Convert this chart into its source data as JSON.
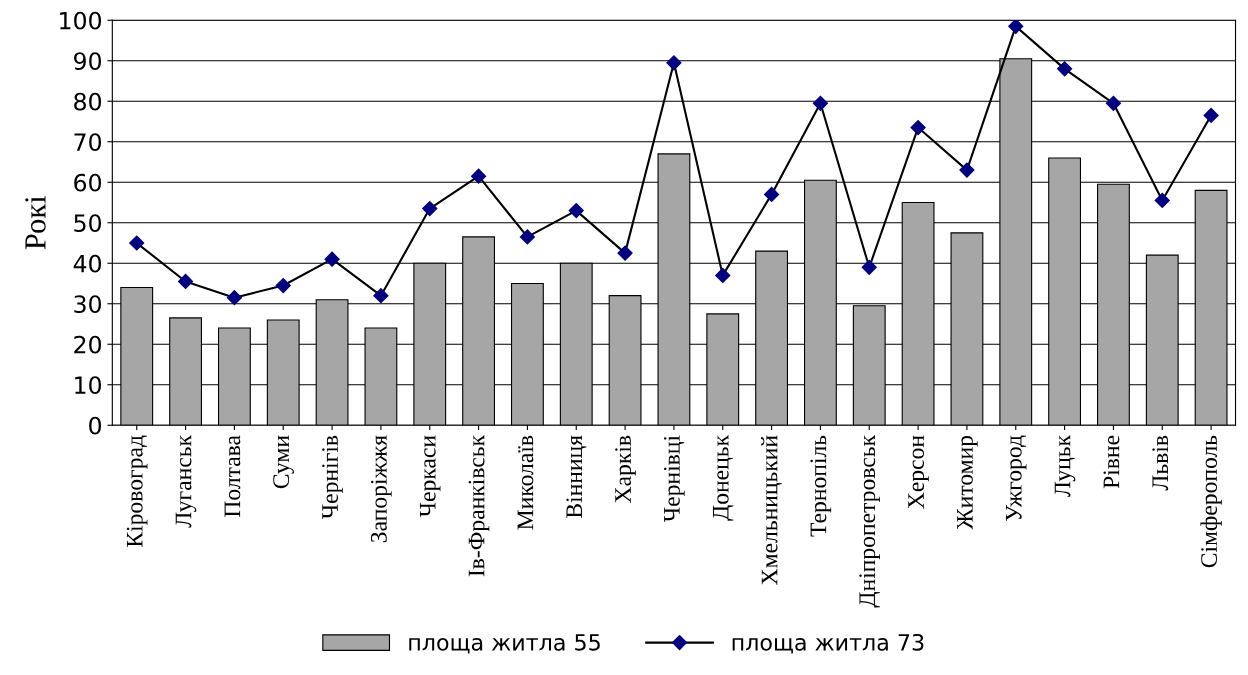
{
  "chart_data": {
    "type": "bar",
    "ylabel": "Рокі",
    "categories": [
      "Кіровоград",
      "Луганськ",
      "Полтава",
      "Суми",
      "Чернігів",
      "Запоріжжя",
      "Черкаси",
      "Ів-Франківськ",
      "Миколаїв",
      "Вінниця",
      "Харків",
      "Чернівці",
      "Донецьк",
      "Хмельницький",
      "Тернопіль",
      "Дніпропетровськ",
      "Херсон",
      "Житомир",
      "Ужгород",
      "Луцьк",
      "Рівне",
      "Львів",
      "Сімферополь"
    ],
    "series": [
      {
        "name": "площа житла 55",
        "color": "#a6a6a6",
        "values": [
          34,
          26.5,
          24,
          26,
          31,
          24,
          40,
          46.5,
          35,
          40,
          32,
          67,
          27.5,
          43,
          60.5,
          29.5,
          55,
          47.5,
          90.5,
          66,
          59.5,
          42,
          58
        ]
      },
      {
        "name": "площа житла 73",
        "type": "line",
        "color": "#000080",
        "marker": "diamond",
        "values": [
          45,
          35.5,
          31.5,
          34.5,
          41,
          32,
          53.5,
          61.5,
          46.5,
          53,
          42.5,
          89.5,
          37,
          57,
          79.5,
          39,
          73.5,
          63,
          98.5,
          88,
          79.5,
          55.5,
          76.5
        ]
      }
    ],
    "ylim": [
      0,
      100
    ],
    "yticks": [
      0,
      10,
      20,
      30,
      40,
      50,
      60,
      70,
      80,
      90,
      100
    ],
    "grid": "y",
    "legend": "bottom"
  }
}
